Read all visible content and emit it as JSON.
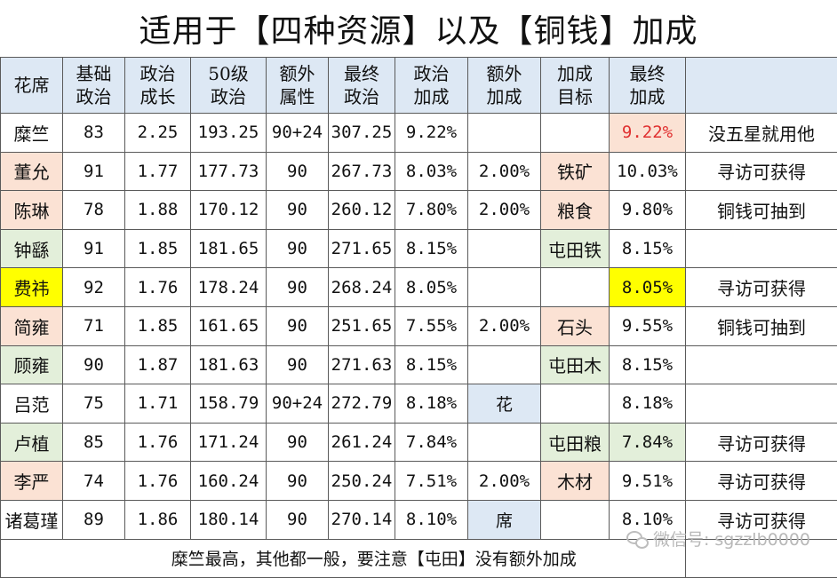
{
  "title": "适用于【四种资源】以及【铜钱】加成",
  "headers": [
    "花席",
    "基础\n政治",
    "政治\n成长",
    "50级\n政治",
    "额外\n属性",
    "最终\n政治",
    "政治\n加成",
    "额外\n加成",
    "加成\n目标",
    "最终\n加成",
    ""
  ],
  "rows": [
    {
      "name": "糜竺",
      "base": "83",
      "growth": "2.25",
      "lv50": "193.25",
      "extra_attr": "90+24",
      "final": "307.25",
      "bonus": "9.22%",
      "extra_bonus": "",
      "target": "",
      "final_bonus": "9.22%",
      "note": "没五星就用他"
    },
    {
      "name": "董允",
      "base": "91",
      "growth": "1.77",
      "lv50": "177.73",
      "extra_attr": "90",
      "final": "267.73",
      "bonus": "8.03%",
      "extra_bonus": "2.00%",
      "target": "铁矿",
      "final_bonus": "10.03%",
      "note": "寻访可获得"
    },
    {
      "name": "陈琳",
      "base": "78",
      "growth": "1.88",
      "lv50": "170.12",
      "extra_attr": "90",
      "final": "260.12",
      "bonus": "7.80%",
      "extra_bonus": "2.00%",
      "target": "粮食",
      "final_bonus": "9.80%",
      "note": "铜钱可抽到"
    },
    {
      "name": "钟繇",
      "base": "91",
      "growth": "1.85",
      "lv50": "181.65",
      "extra_attr": "90",
      "final": "271.65",
      "bonus": "8.15%",
      "extra_bonus": "",
      "target": "屯田铁",
      "final_bonus": "8.15%",
      "note": ""
    },
    {
      "name": "费祎",
      "base": "92",
      "growth": "1.76",
      "lv50": "178.24",
      "extra_attr": "90",
      "final": "268.24",
      "bonus": "8.05%",
      "extra_bonus": "",
      "target": "",
      "final_bonus": "8.05%",
      "note": "寻访可获得"
    },
    {
      "name": "简雍",
      "base": "71",
      "growth": "1.85",
      "lv50": "161.65",
      "extra_attr": "90",
      "final": "251.65",
      "bonus": "7.55%",
      "extra_bonus": "2.00%",
      "target": "石头",
      "final_bonus": "9.55%",
      "note": "铜钱可抽到"
    },
    {
      "name": "顾雍",
      "base": "90",
      "growth": "1.87",
      "lv50": "181.63",
      "extra_attr": "90",
      "final": "271.63",
      "bonus": "8.15%",
      "extra_bonus": "",
      "target": "屯田木",
      "final_bonus": "8.15%",
      "note": ""
    },
    {
      "name": "吕范",
      "base": "75",
      "growth": "1.71",
      "lv50": "158.79",
      "extra_attr": "90+24",
      "final": "272.79",
      "bonus": "8.18%",
      "extra_bonus": "花",
      "target": "",
      "final_bonus": "8.18%",
      "note": ""
    },
    {
      "name": "卢植",
      "base": "85",
      "growth": "1.76",
      "lv50": "171.24",
      "extra_attr": "90",
      "final": "261.24",
      "bonus": "7.84%",
      "extra_bonus": "",
      "target": "屯田粮",
      "final_bonus": "7.84%",
      "note": "寻访可获得"
    },
    {
      "name": "李严",
      "base": "74",
      "growth": "1.76",
      "lv50": "160.24",
      "extra_attr": "90",
      "final": "250.24",
      "bonus": "7.51%",
      "extra_bonus": "2.00%",
      "target": "木材",
      "final_bonus": "9.51%",
      "note": "寻访可获得"
    },
    {
      "name": "诸葛瑾",
      "base": "89",
      "growth": "1.86",
      "lv50": "180.14",
      "extra_attr": "90",
      "final": "270.14",
      "bonus": "8.10%",
      "extra_bonus": "席",
      "target": "",
      "final_bonus": "8.10%",
      "note": "寻访可获得"
    }
  ],
  "footer": "糜竺最高，其他都一般，要注意【屯田】没有额外加成",
  "watermark": "微信号: sgzzlb0000",
  "colors": {
    "header_bg": "#dde8f4",
    "peach": "#fbe2d4",
    "green": "#e3efda",
    "yellow": "#ffff00",
    "red_text": "#e03030"
  }
}
